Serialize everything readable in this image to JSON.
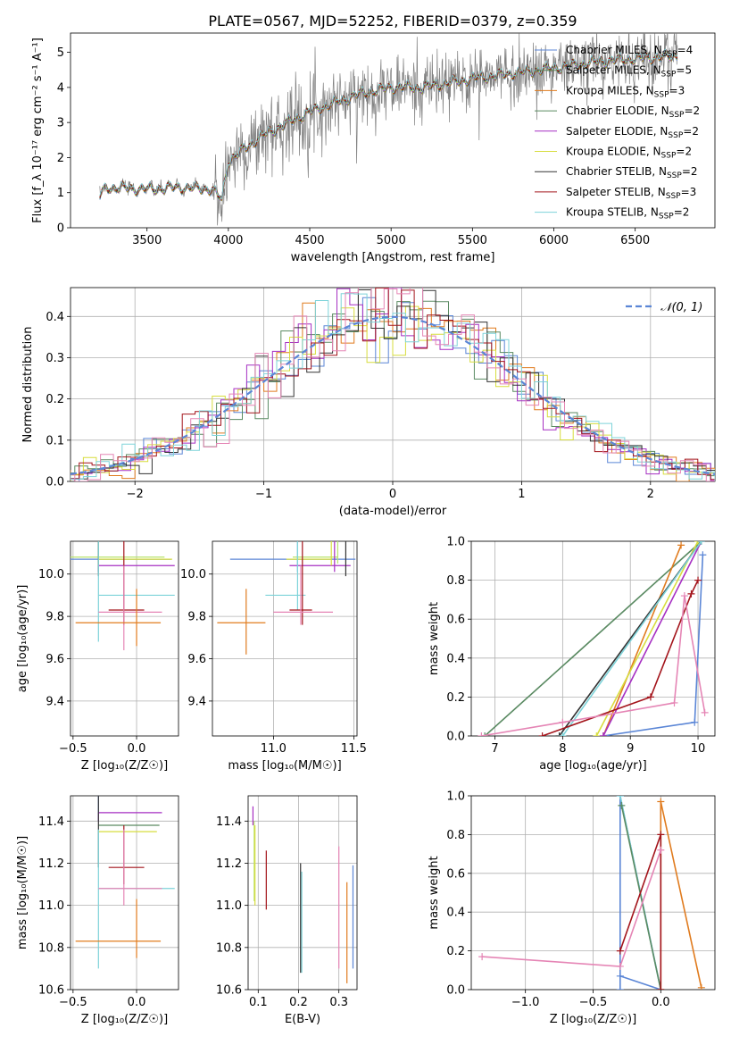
{
  "figure_title": "PLATE=0567, MJD=52252, FIBERID=0379, z=0.359",
  "colors": {
    "blue": "#5b86d6",
    "orange": "#e07b1e",
    "green": "#5a8a62",
    "magenta": "#a62fc2",
    "yellow": "#d7dd3e",
    "dark": "#333333",
    "red": "#a3141b",
    "cyan": "#7dd3d9",
    "pink": "#e585b5",
    "lightgreen": "#b9e26d",
    "gray": "#808080",
    "darkdiv": "#444444"
  },
  "chart_data": [
    {
      "id": "spectrum",
      "type": "line",
      "xlabel": "wavelength [Angstrom, rest frame]",
      "ylabel": "Flux [f_λ 10⁻¹⁷ erg cm⁻² s⁻¹ A⁻¹]",
      "xlim": [
        3030,
        6990
      ],
      "ylim": [
        0,
        5.55
      ],
      "xticks": [
        3500,
        4000,
        4500,
        5000,
        5500,
        6000,
        6500
      ],
      "yticks": [
        0,
        1,
        2,
        3,
        4,
        5
      ],
      "grid": false,
      "legend_position": "lower-right",
      "data_color": "#808080",
      "data_range": [
        3210,
        6760
      ],
      "data_noise_note": "",
      "continuum": {
        "x": [
          3210,
          3250,
          3500,
          3700,
          3900,
          3960,
          4000,
          4200,
          4500,
          4800,
          5000,
          5200,
          5500,
          6000,
          6300,
          6760
        ],
        "y": [
          0.9,
          1.15,
          1.1,
          1.15,
          1.1,
          0.8,
          1.9,
          2.6,
          3.3,
          3.8,
          4.0,
          4.0,
          4.25,
          4.55,
          4.75,
          4.9
        ]
      },
      "series": [
        {
          "name": "Chabrier MILES, N_SSP=4",
          "color": "#5b86d6"
        },
        {
          "name": "Salpeter MILES, N_SSP=5",
          "color": "#5a8a62"
        },
        {
          "name": "Kroupa MILES, N_SSP=3",
          "color": "#e07b1e"
        },
        {
          "name": "Chabrier ELODIE, N_SSP=2",
          "color": "#5a8a62"
        },
        {
          "name": "Salpeter ELODIE, N_SSP=2",
          "color": "#a62fc2"
        },
        {
          "name": "Kroupa ELODIE, N_SSP=2",
          "color": "#d7dd3e"
        },
        {
          "name": "Chabrier STELIB, N_SSP=2",
          "color": "#333333"
        },
        {
          "name": "Salpeter STELIB, N_SSP=3",
          "color": "#a3141b"
        },
        {
          "name": "Kroupa STELIB, N_SSP=2",
          "color": "#7dd3d9"
        }
      ]
    },
    {
      "id": "residuals",
      "type": "line",
      "xlabel": "(data-model)/error",
      "ylabel": "Normed distribution",
      "xlim": [
        -2.5,
        2.5
      ],
      "ylim": [
        0,
        0.47
      ],
      "xticks": [
        -2,
        -1,
        0,
        1,
        2
      ],
      "yticks": [
        0.0,
        0.1,
        0.2,
        0.3,
        0.4
      ],
      "grid": true,
      "legend_position": "top-right",
      "gaussian": {
        "name": "𝒩(0, 1)",
        "mu": 0,
        "sigma": 1,
        "color": "#5b86d6"
      },
      "hist_colors": [
        "#5b86d6",
        "#e07b1e",
        "#5a8a62",
        "#a62fc2",
        "#d7dd3e",
        "#333333",
        "#a3141b",
        "#7dd3d9",
        "#e585b5"
      ]
    },
    {
      "id": "age_vs_Z",
      "type": "scatter",
      "xlabel": "Z [log₁₀(Z/Z☉)]",
      "ylabel": "age  [log₁₀(age/yr)]",
      "xlim": [
        -0.52,
        0.33
      ],
      "ylim": [
        9.235,
        10.155
      ],
      "xticks": [
        -0.5,
        0.0
      ],
      "yticks": [
        9.4,
        9.6,
        9.8,
        10.0
      ],
      "grid": true,
      "points": [
        {
          "x": -0.3,
          "xerr": [
            0.52,
            0.57
          ],
          "y": 10.07,
          "yerr": [
            0.06,
            0.06
          ],
          "color": "#5b86d6"
        },
        {
          "x": -0.3,
          "xerr": [
            0.24,
            0.52
          ],
          "y": 10.08,
          "yerr": [
            0.04,
            0.06
          ],
          "color": "#b9e26d"
        },
        {
          "x": -0.3,
          "xerr": [
            0.0,
            0.6
          ],
          "y": 10.04,
          "yerr": [
            0.03,
            0.42
          ],
          "color": "#a62fc2"
        },
        {
          "x": -0.3,
          "xerr": [
            0.0,
            0.58
          ],
          "y": 10.07,
          "yerr": [
            0.03,
            0.48
          ],
          "color": "#d7dd3e"
        },
        {
          "x": -0.3,
          "xerr": [
            0.0,
            0.0
          ],
          "y": 10.03,
          "yerr": [
            0.04,
            0.28
          ],
          "color": "#333333"
        },
        {
          "x": -0.3,
          "xerr": [
            0.0,
            0.6
          ],
          "y": 9.9,
          "yerr": [
            0.22,
            0.61
          ],
          "color": "#7dd3d9"
        },
        {
          "x": -0.1,
          "xerr": [
            0.12,
            0.16
          ],
          "y": 9.83,
          "yerr": [
            0.07,
            0.33
          ],
          "color": "#a3141b"
        },
        {
          "x": -0.1,
          "xerr": [
            0.2,
            0.3
          ],
          "y": 9.82,
          "yerr": [
            0.18,
            0.22
          ],
          "color": "#e585b5"
        },
        {
          "x": 0.0,
          "xerr": [
            0.48,
            0.19
          ],
          "y": 9.77,
          "yerr": [
            0.11,
            0.16
          ],
          "color": "#e07b1e"
        }
      ]
    },
    {
      "id": "age_vs_mass",
      "type": "scatter",
      "xlabel": "mass [log₁₀(M/M☉)]",
      "ylabel": "",
      "xlim": [
        10.62,
        11.52
      ],
      "ylim": [
        9.235,
        10.155
      ],
      "xticks": [
        11.0,
        11.5
      ],
      "yticks": [
        9.4,
        9.6,
        9.8,
        10.0
      ],
      "grid": true,
      "points": [
        {
          "x": 11.15,
          "xerr": [
            0.42,
            0.36
          ],
          "y": 10.07,
          "yerr": [
            0.06,
            0.76
          ],
          "color": "#5b86d6"
        },
        {
          "x": 11.4,
          "xerr": [
            0.28,
            0.0
          ],
          "y": 10.08,
          "yerr": [
            0.03,
            0.48
          ],
          "color": "#b9e26d"
        },
        {
          "x": 11.38,
          "xerr": [
            0.28,
            0.1
          ],
          "y": 10.04,
          "yerr": [
            0.03,
            0.42
          ],
          "color": "#a62fc2"
        },
        {
          "x": 11.36,
          "xerr": [
            0.28,
            0.0
          ],
          "y": 10.07,
          "yerr": [
            0.03,
            0.47
          ],
          "color": "#d7dd3e"
        },
        {
          "x": 11.45,
          "xerr": [
            0.0,
            0.0
          ],
          "y": 10.03,
          "yerr": [
            0.04,
            0.42
          ],
          "color": "#333333"
        },
        {
          "x": 11.15,
          "xerr": [
            0.2,
            0.05
          ],
          "y": 9.9,
          "yerr": [
            0.07,
            0.61
          ],
          "color": "#7dd3d9"
        },
        {
          "x": 11.18,
          "xerr": [
            0.08,
            0.06
          ],
          "y": 9.83,
          "yerr": [
            0.07,
            0.33
          ],
          "color": "#a3141b"
        },
        {
          "x": 11.17,
          "xerr": [
            0.17,
            0.2
          ],
          "y": 9.82,
          "yerr": [
            0.06,
            0.22
          ],
          "color": "#e585b5"
        },
        {
          "x": 10.83,
          "xerr": [
            0.18,
            0.12
          ],
          "y": 9.77,
          "yerr": [
            0.15,
            0.16
          ],
          "color": "#e07b1e"
        }
      ]
    },
    {
      "id": "massweight_vs_age",
      "type": "line",
      "xlabel": "age  [log₁₀(age/yr)]",
      "ylabel": "mass weight",
      "xlim": [
        6.65,
        10.25
      ],
      "ylim": [
        0.0,
        1.0
      ],
      "xticks": [
        7,
        8,
        9,
        10
      ],
      "yticks": [
        0.0,
        0.2,
        0.4,
        0.6,
        0.8,
        1.0
      ],
      "grid": true,
      "series": [
        {
          "color": "#5a8a62",
          "x": [
            6.85,
            10.05
          ],
          "y": [
            0.0,
            1.0
          ]
        },
        {
          "color": "#5b86d6",
          "x": [
            8.6,
            9.95,
            10.07
          ],
          "y": [
            0.0,
            0.07,
            0.93
          ]
        },
        {
          "color": "#e07b1e",
          "x": [
            8.6,
            9.75
          ],
          "y": [
            0.0,
            0.98
          ]
        },
        {
          "color": "#d7dd3e",
          "x": [
            8.5,
            10.0
          ],
          "y": [
            0.0,
            1.0
          ]
        },
        {
          "color": "#a62fc2",
          "x": [
            8.6,
            10.05
          ],
          "y": [
            0.0,
            1.0
          ]
        },
        {
          "color": "#333333",
          "x": [
            7.95,
            10.05
          ],
          "y": [
            0.0,
            1.0
          ]
        },
        {
          "color": "#7dd3d9",
          "x": [
            8.0,
            10.05
          ],
          "y": [
            0.0,
            1.0
          ]
        },
        {
          "color": "#a3141b",
          "x": [
            7.7,
            9.3,
            9.9,
            10.0
          ],
          "y": [
            0.0,
            0.2,
            0.73,
            0.8
          ]
        },
        {
          "color": "#e585b5",
          "x": [
            6.8,
            8.0,
            9.65,
            9.8,
            10.1
          ],
          "y": [
            0.0,
            0.07,
            0.17,
            0.72,
            0.12
          ]
        }
      ]
    },
    {
      "id": "mass_vs_Z",
      "type": "scatter",
      "xlabel": "Z [log₁₀(Z/Z☉)]",
      "ylabel": "mass [log₁₀(M/M☉)]",
      "xlim": [
        -0.52,
        0.33
      ],
      "ylim": [
        10.6,
        11.52
      ],
      "xticks": [
        -0.5,
        0.0
      ],
      "yticks": [
        10.6,
        10.8,
        11.0,
        11.2,
        11.4
      ],
      "grid": true,
      "points": [
        {
          "x": -0.3,
          "xerr": [
            0.0,
            0.0
          ],
          "y": 11.44,
          "yerr": [
            0.04,
            0.1
          ],
          "color": "#5b86d6"
        },
        {
          "x": -0.3,
          "xerr": [
            0.0,
            0.5
          ],
          "y": 11.44,
          "yerr": [
            0.04,
            0.0
          ],
          "color": "#a62fc2"
        },
        {
          "x": -0.3,
          "xerr": [
            0.0,
            0.48
          ],
          "y": 11.38,
          "yerr": [
            0.0,
            0.0
          ],
          "color": "#5a8a62"
        },
        {
          "x": -0.3,
          "xerr": [
            0.0,
            0.46
          ],
          "y": 11.35,
          "yerr": [
            0.0,
            0.0
          ],
          "color": "#d7dd3e"
        },
        {
          "x": -0.3,
          "xerr": [
            0.0,
            0.0
          ],
          "y": 11.18,
          "yerr": [
            0.0,
            0.5
          ],
          "color": "#333333"
        },
        {
          "x": -0.3,
          "xerr": [
            0.0,
            0.6
          ],
          "y": 11.08,
          "yerr": [
            0.38,
            0.28
          ],
          "color": "#7dd3d9"
        },
        {
          "x": -0.1,
          "xerr": [
            0.12,
            0.16
          ],
          "y": 11.18,
          "yerr": [
            0.08,
            0.2
          ],
          "color": "#a3141b"
        },
        {
          "x": -0.1,
          "xerr": [
            0.2,
            0.3
          ],
          "y": 11.08,
          "yerr": [
            0.08,
            0.28
          ],
          "color": "#e585b5"
        },
        {
          "x": 0.0,
          "xerr": [
            0.48,
            0.19
          ],
          "y": 10.83,
          "yerr": [
            0.08,
            0.2
          ],
          "color": "#e07b1e"
        }
      ]
    },
    {
      "id": "mass_vs_ebv",
      "type": "scatter",
      "xlabel": "E(B-V)",
      "ylabel": "",
      "xlim": [
        0.075,
        0.345
      ],
      "ylim": [
        10.6,
        11.52
      ],
      "xticks": [
        0.1,
        0.2,
        0.3
      ],
      "yticks": [
        10.6,
        10.8,
        11.0,
        11.2,
        11.4
      ],
      "grid": true,
      "points": [
        {
          "x": 0.087,
          "y": 11.44,
          "yerr": [
            0.06,
            0.03
          ],
          "color": "#a62fc2"
        },
        {
          "x": 0.09,
          "y": 11.2,
          "yerr": [
            0.18,
            0.2
          ],
          "color": "#b9e26d"
        },
        {
          "x": 0.092,
          "y": 11.18,
          "yerr": [
            0.18,
            0.2
          ],
          "color": "#d7dd3e"
        },
        {
          "x": 0.12,
          "y": 11.08,
          "yerr": [
            0.1,
            0.18
          ],
          "color": "#a3141b"
        },
        {
          "x": 0.205,
          "y": 11.0,
          "yerr": [
            0.32,
            0.2
          ],
          "color": "#333333"
        },
        {
          "x": 0.208,
          "y": 11.0,
          "yerr": [
            0.32,
            0.16
          ],
          "color": "#7dd3d9"
        },
        {
          "x": 0.3,
          "y": 11.0,
          "yerr": [
            0.3,
            0.28
          ],
          "color": "#e585b5"
        },
        {
          "x": 0.32,
          "y": 10.87,
          "yerr": [
            0.24,
            0.24
          ],
          "color": "#e07b1e"
        },
        {
          "x": 0.335,
          "y": 10.95,
          "yerr": [
            0.25,
            0.24
          ],
          "color": "#5b86d6"
        }
      ]
    },
    {
      "id": "massweight_vs_Z",
      "type": "line",
      "xlabel": "Z [log₁₀(Z/Z☉)]",
      "ylabel": "mass weight",
      "xlim": [
        -1.4,
        0.4
      ],
      "ylim": [
        0.0,
        1.0
      ],
      "xticks": [
        -1.0,
        -0.5,
        0.0
      ],
      "yticks": [
        0.0,
        0.2,
        0.4,
        0.6,
        0.8,
        1.0
      ],
      "grid": true,
      "series": [
        {
          "color": "#5b86d6",
          "x": [
            -0.3,
            -0.3,
            0.0
          ],
          "y": [
            0.0,
            1.0,
            0.0
          ]
        },
        {
          "color": "#5b86d6",
          "x": [
            -0.3,
            0.0
          ],
          "y": [
            0.07,
            0.0
          ]
        },
        {
          "color": "#7dd3d9",
          "x": [
            -0.3,
            0.0
          ],
          "y": [
            1.0,
            0.0
          ]
        },
        {
          "color": "#5a8a62",
          "x": [
            -0.29,
            0.0
          ],
          "y": [
            0.95,
            0.0
          ]
        },
        {
          "color": "#e07b1e",
          "x": [
            0.3,
            0.0,
            0.0
          ],
          "y": [
            0.01,
            0.97,
            0.0
          ]
        },
        {
          "color": "#a3141b",
          "x": [
            -0.3,
            0.0,
            0.0
          ],
          "y": [
            0.2,
            0.8,
            0.0
          ]
        },
        {
          "color": "#e585b5",
          "x": [
            -1.32,
            -0.3,
            0.0
          ],
          "y": [
            0.17,
            0.12,
            0.72
          ]
        }
      ]
    }
  ]
}
